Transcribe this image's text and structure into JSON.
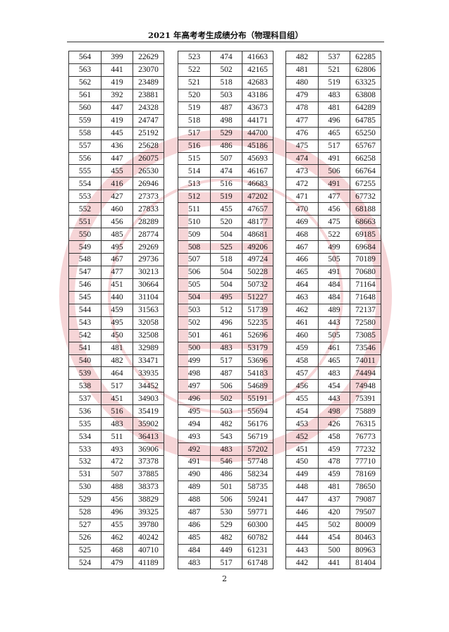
{
  "header": {
    "title": "2021 年高考考生成绩分布（物理科目组）"
  },
  "page_number": "2",
  "watermark": {
    "text": "www.eeafj.cn",
    "color": "#d9434f"
  },
  "tables": [
    {
      "rows": [
        [
          "564",
          "399",
          "22629"
        ],
        [
          "563",
          "441",
          "23070"
        ],
        [
          "562",
          "419",
          "23489"
        ],
        [
          "561",
          "392",
          "23881"
        ],
        [
          "560",
          "447",
          "24328"
        ],
        [
          "559",
          "419",
          "24747"
        ],
        [
          "558",
          "445",
          "25192"
        ],
        [
          "557",
          "436",
          "25628"
        ],
        [
          "556",
          "447",
          "26075"
        ],
        [
          "555",
          "455",
          "26530"
        ],
        [
          "554",
          "416",
          "26946"
        ],
        [
          "553",
          "427",
          "27373"
        ],
        [
          "552",
          "460",
          "27833"
        ],
        [
          "551",
          "456",
          "28289"
        ],
        [
          "550",
          "485",
          "28774"
        ],
        [
          "549",
          "495",
          "29269"
        ],
        [
          "548",
          "467",
          "29736"
        ],
        [
          "547",
          "477",
          "30213"
        ],
        [
          "546",
          "451",
          "30664"
        ],
        [
          "545",
          "440",
          "31104"
        ],
        [
          "544",
          "459",
          "31563"
        ],
        [
          "543",
          "495",
          "32058"
        ],
        [
          "542",
          "450",
          "32508"
        ],
        [
          "541",
          "481",
          "32989"
        ],
        [
          "540",
          "482",
          "33471"
        ],
        [
          "539",
          "464",
          "33935"
        ],
        [
          "538",
          "517",
          "34452"
        ],
        [
          "537",
          "451",
          "34903"
        ],
        [
          "536",
          "516",
          "35419"
        ],
        [
          "535",
          "483",
          "35902"
        ],
        [
          "534",
          "511",
          "36413"
        ],
        [
          "533",
          "493",
          "36906"
        ],
        [
          "532",
          "472",
          "37378"
        ],
        [
          "531",
          "507",
          "37885"
        ],
        [
          "530",
          "488",
          "38373"
        ],
        [
          "529",
          "456",
          "38829"
        ],
        [
          "528",
          "496",
          "39325"
        ],
        [
          "527",
          "455",
          "39780"
        ],
        [
          "526",
          "462",
          "40242"
        ],
        [
          "525",
          "468",
          "40710"
        ],
        [
          "524",
          "479",
          "41189"
        ]
      ]
    },
    {
      "rows": [
        [
          "523",
          "474",
          "41663"
        ],
        [
          "522",
          "502",
          "42165"
        ],
        [
          "521",
          "518",
          "42683"
        ],
        [
          "520",
          "503",
          "43186"
        ],
        [
          "519",
          "487",
          "43673"
        ],
        [
          "518",
          "498",
          "44171"
        ],
        [
          "517",
          "529",
          "44700"
        ],
        [
          "516",
          "486",
          "45186"
        ],
        [
          "515",
          "507",
          "45693"
        ],
        [
          "514",
          "474",
          "46167"
        ],
        [
          "513",
          "516",
          "46683"
        ],
        [
          "512",
          "519",
          "47202"
        ],
        [
          "511",
          "455",
          "47657"
        ],
        [
          "510",
          "520",
          "48177"
        ],
        [
          "509",
          "504",
          "48681"
        ],
        [
          "508",
          "525",
          "49206"
        ],
        [
          "507",
          "518",
          "49724"
        ],
        [
          "506",
          "504",
          "50228"
        ],
        [
          "505",
          "504",
          "50732"
        ],
        [
          "504",
          "495",
          "51227"
        ],
        [
          "503",
          "512",
          "51739"
        ],
        [
          "502",
          "496",
          "52235"
        ],
        [
          "501",
          "461",
          "52696"
        ],
        [
          "500",
          "483",
          "53179"
        ],
        [
          "499",
          "517",
          "53696"
        ],
        [
          "498",
          "487",
          "54183"
        ],
        [
          "497",
          "506",
          "54689"
        ],
        [
          "496",
          "502",
          "55191"
        ],
        [
          "495",
          "503",
          "55694"
        ],
        [
          "494",
          "482",
          "56176"
        ],
        [
          "493",
          "543",
          "56719"
        ],
        [
          "492",
          "483",
          "57202"
        ],
        [
          "491",
          "546",
          "57748"
        ],
        [
          "490",
          "486",
          "58234"
        ],
        [
          "489",
          "501",
          "58735"
        ],
        [
          "488",
          "506",
          "59241"
        ],
        [
          "487",
          "530",
          "59771"
        ],
        [
          "486",
          "529",
          "60300"
        ],
        [
          "485",
          "482",
          "60782"
        ],
        [
          "484",
          "449",
          "61231"
        ],
        [
          "483",
          "517",
          "61748"
        ]
      ]
    },
    {
      "rows": [
        [
          "482",
          "537",
          "62285"
        ],
        [
          "481",
          "521",
          "62806"
        ],
        [
          "480",
          "519",
          "63325"
        ],
        [
          "479",
          "483",
          "63808"
        ],
        [
          "478",
          "481",
          "64289"
        ],
        [
          "477",
          "496",
          "64785"
        ],
        [
          "476",
          "465",
          "65250"
        ],
        [
          "475",
          "517",
          "65767"
        ],
        [
          "474",
          "491",
          "66258"
        ],
        [
          "473",
          "506",
          "66764"
        ],
        [
          "472",
          "491",
          "67255"
        ],
        [
          "471",
          "477",
          "67732"
        ],
        [
          "470",
          "456",
          "68188"
        ],
        [
          "469",
          "475",
          "68663"
        ],
        [
          "468",
          "522",
          "69185"
        ],
        [
          "467",
          "499",
          "69684"
        ],
        [
          "466",
          "505",
          "70189"
        ],
        [
          "465",
          "491",
          "70680"
        ],
        [
          "464",
          "484",
          "71164"
        ],
        [
          "463",
          "484",
          "71648"
        ],
        [
          "462",
          "489",
          "72137"
        ],
        [
          "461",
          "443",
          "72580"
        ],
        [
          "460",
          "505",
          "73085"
        ],
        [
          "459",
          "461",
          "73546"
        ],
        [
          "458",
          "465",
          "74011"
        ],
        [
          "457",
          "483",
          "74494"
        ],
        [
          "456",
          "454",
          "74948"
        ],
        [
          "455",
          "443",
          "75391"
        ],
        [
          "454",
          "498",
          "75889"
        ],
        [
          "453",
          "426",
          "76315"
        ],
        [
          "452",
          "458",
          "76773"
        ],
        [
          "451",
          "459",
          "77232"
        ],
        [
          "450",
          "478",
          "77710"
        ],
        [
          "449",
          "459",
          "78169"
        ],
        [
          "448",
          "481",
          "78650"
        ],
        [
          "447",
          "437",
          "79087"
        ],
        [
          "446",
          "420",
          "79507"
        ],
        [
          "445",
          "502",
          "80009"
        ],
        [
          "444",
          "454",
          "80463"
        ],
        [
          "443",
          "500",
          "80963"
        ],
        [
          "442",
          "441",
          "81404"
        ]
      ]
    }
  ]
}
